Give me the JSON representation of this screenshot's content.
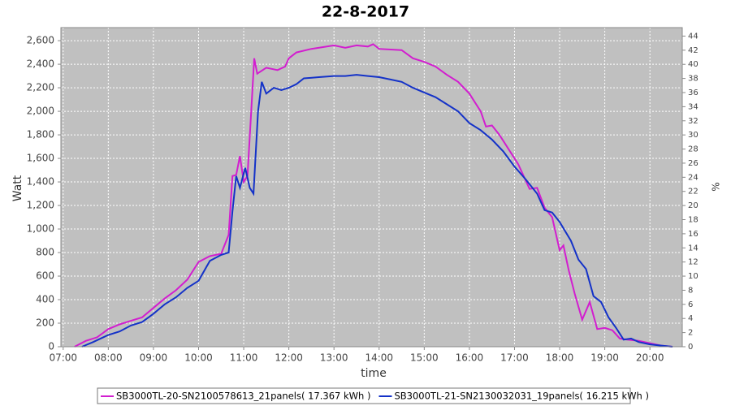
{
  "chart_data": {
    "type": "line",
    "title": "22-8-2017",
    "x_label": "time",
    "y_label": "Watt",
    "y2_label": "%",
    "xlim": [
      "06:57",
      "20:43"
    ],
    "xticks": [
      "07:00",
      "08:00",
      "09:00",
      "10:00",
      "11:00",
      "12:00",
      "13:00",
      "14:00",
      "15:00",
      "16:00",
      "17:00",
      "18:00",
      "19:00",
      "20:00"
    ],
    "ylim": [
      0,
      2711
    ],
    "yticks": [
      0,
      200,
      400,
      600,
      800,
      {
        "value": 1000,
        "label": "1,000"
      },
      {
        "value": 1200,
        "label": "1,200"
      },
      {
        "value": 1400,
        "label": "1,400"
      },
      {
        "value": 1600,
        "label": "1,600"
      },
      {
        "value": 1800,
        "label": "1,800"
      },
      {
        "value": 2000,
        "label": "2,000"
      },
      {
        "value": 2200,
        "label": "2,200"
      },
      {
        "value": 2400,
        "label": "2,400"
      },
      {
        "value": 2600,
        "label": "2,600"
      }
    ],
    "y2lim": [
      0,
      45.2
    ],
    "y2ticks": [
      0,
      2,
      4,
      6,
      8,
      10,
      12,
      14,
      16,
      18,
      20,
      22,
      24,
      26,
      28,
      30,
      32,
      34,
      36,
      38,
      40,
      42,
      44
    ],
    "grid": true,
    "legend": "bottom",
    "background": "#c0c0c0",
    "series": [
      {
        "name": "SB3000TL-20-SN2100578613_21panels( 17.367 kWh )",
        "color": "#d21ecf",
        "x": [
          "07:15",
          "07:30",
          "07:45",
          "08:00",
          "08:15",
          "08:30",
          "08:45",
          "09:00",
          "09:15",
          "09:30",
          "09:45",
          "10:00",
          "10:15",
          "10:30",
          "10:40",
          "10:45",
          "10:50",
          "10:55",
          "11:00",
          "11:05",
          "11:10",
          "11:14",
          "11:18",
          "11:30",
          "11:45",
          "11:55",
          "12:00",
          "12:10",
          "12:30",
          "13:00",
          "13:15",
          "13:30",
          "13:45",
          "13:52",
          "14:00",
          "14:30",
          "14:45",
          "15:00",
          "15:15",
          "15:30",
          "15:45",
          "16:00",
          "16:15",
          "16:22",
          "16:30",
          "16:40",
          "16:55",
          "17:05",
          "17:20",
          "17:30",
          "17:40",
          "17:50",
          "18:00",
          "18:05",
          "18:12",
          "18:20",
          "18:30",
          "18:40",
          "18:50",
          "19:00",
          "19:10",
          "19:20",
          "19:30",
          "19:45",
          "20:00",
          "20:15",
          "20:30"
        ],
        "values": [
          0,
          50,
          80,
          150,
          190,
          220,
          250,
          330,
          410,
          480,
          570,
          720,
          770,
          790,
          950,
          1450,
          1460,
          1620,
          1400,
          1450,
          2000,
          2450,
          2320,
          2370,
          2350,
          2380,
          2450,
          2500,
          2530,
          2560,
          2540,
          2560,
          2550,
          2570,
          2530,
          2520,
          2450,
          2420,
          2380,
          2310,
          2250,
          2150,
          2000,
          1870,
          1880,
          1800,
          1650,
          1550,
          1340,
          1350,
          1180,
          1100,
          820,
          860,
          650,
          450,
          230,
          380,
          150,
          160,
          140,
          70,
          60,
          50,
          30,
          10,
          0
        ]
      },
      {
        "name": "SB3000TL-21-SN2130032031_19panels( 16.215 kWh )",
        "color": "#1432c8",
        "x": [
          "07:25",
          "07:40",
          "08:00",
          "08:15",
          "08:30",
          "08:45",
          "09:00",
          "09:15",
          "09:30",
          "09:45",
          "10:00",
          "10:15",
          "10:30",
          "10:40",
          "10:45",
          "10:50",
          "10:55",
          "11:02",
          "11:08",
          "11:13",
          "11:19",
          "11:24",
          "11:30",
          "11:40",
          "11:50",
          "12:00",
          "12:10",
          "12:20",
          "12:40",
          "13:00",
          "13:15",
          "13:30",
          "13:45",
          "14:00",
          "14:15",
          "14:30",
          "14:45",
          "15:00",
          "15:15",
          "15:30",
          "15:45",
          "16:00",
          "16:15",
          "16:30",
          "16:45",
          "17:00",
          "17:15",
          "17:30",
          "17:40",
          "17:50",
          "18:00",
          "18:15",
          "18:25",
          "18:35",
          "18:45",
          "18:55",
          "19:05",
          "19:15",
          "19:25",
          "19:35",
          "19:45",
          "20:00",
          "20:15",
          "20:30"
        ],
        "values": [
          0,
          40,
          100,
          130,
          180,
          210,
          280,
          360,
          420,
          500,
          560,
          730,
          780,
          800,
          1150,
          1450,
          1350,
          1520,
          1350,
          1300,
          2000,
          2250,
          2150,
          2200,
          2180,
          2200,
          2230,
          2280,
          2290,
          2300,
          2300,
          2310,
          2300,
          2290,
          2270,
          2250,
          2200,
          2160,
          2120,
          2060,
          2000,
          1900,
          1840,
          1760,
          1660,
          1530,
          1420,
          1300,
          1160,
          1140,
          1060,
          900,
          740,
          660,
          430,
          380,
          250,
          160,
          60,
          70,
          40,
          20,
          10,
          0
        ]
      }
    ]
  }
}
